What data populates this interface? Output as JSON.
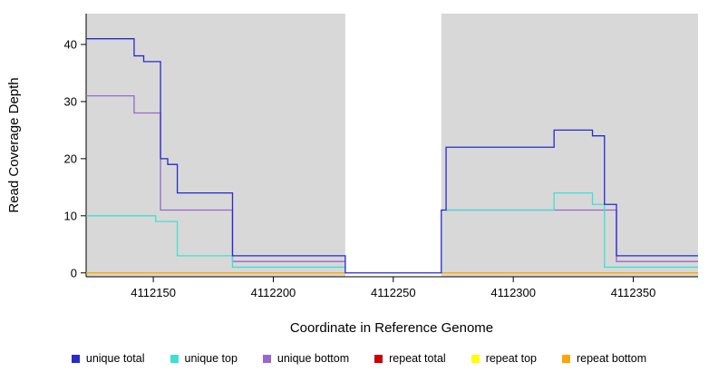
{
  "chart_data": {
    "type": "line",
    "subtype": "step",
    "title": "",
    "xlabel": "Coordinate in Reference Genome",
    "ylabel": "Read Coverage Depth",
    "xlim": [
      4112122,
      4112377
    ],
    "ylim": [
      0,
      45
    ],
    "xticks": [
      4112150,
      4112200,
      4112250,
      4112300,
      4112350
    ],
    "yticks": [
      0,
      10,
      20,
      30,
      40
    ],
    "grid": false,
    "legend_position": "bottom",
    "plot_background": "#d8d8d8",
    "masked_region": {
      "x0": 4112230,
      "x1": 4112270,
      "color": "#ffffff"
    },
    "draw_order": [
      3,
      4,
      5,
      2,
      1,
      0
    ],
    "series": [
      {
        "name": "unique total",
        "color": "#2929CC",
        "steps": [
          [
            4112122,
            41
          ],
          [
            4112142,
            38
          ],
          [
            4112146,
            37
          ],
          [
            4112153,
            20
          ],
          [
            4112156,
            19
          ],
          [
            4112160,
            14
          ],
          [
            4112183,
            3
          ],
          [
            4112230,
            0
          ],
          [
            4112270,
            11
          ],
          [
            4112272,
            22
          ],
          [
            4112317,
            25
          ],
          [
            4112333,
            24
          ],
          [
            4112338,
            12
          ],
          [
            4112343,
            3
          ],
          [
            4112377,
            3
          ]
        ]
      },
      {
        "name": "unique top",
        "color": "#40E0D0",
        "steps": [
          [
            4112122,
            10
          ],
          [
            4112151,
            9
          ],
          [
            4112160,
            3
          ],
          [
            4112183,
            1
          ],
          [
            4112230,
            null
          ],
          [
            4112270,
            11
          ],
          [
            4112317,
            14
          ],
          [
            4112333,
            12
          ],
          [
            4112338,
            1
          ],
          [
            4112377,
            1
          ]
        ]
      },
      {
        "name": "unique bottom",
        "color": "#9966CC",
        "steps": [
          [
            4112122,
            31
          ],
          [
            4112142,
            28
          ],
          [
            4112153,
            11
          ],
          [
            4112183,
            2
          ],
          [
            4112230,
            null
          ],
          [
            4112272,
            11
          ],
          [
            4112343,
            2
          ],
          [
            4112377,
            2
          ]
        ]
      },
      {
        "name": "repeat total",
        "color": "#CC0000",
        "steps": [
          [
            4112122,
            0
          ],
          [
            4112230,
            null
          ],
          [
            4112270,
            0
          ],
          [
            4112377,
            0
          ]
        ]
      },
      {
        "name": "repeat top",
        "color": "#FFFF00",
        "steps": [
          [
            4112122,
            0
          ],
          [
            4112230,
            null
          ],
          [
            4112270,
            0
          ],
          [
            4112377,
            0
          ]
        ]
      },
      {
        "name": "repeat bottom",
        "color": "#FFA500",
        "steps": [
          [
            4112122,
            0
          ],
          [
            4112230,
            null
          ],
          [
            4112270,
            0
          ],
          [
            4112377,
            0
          ]
        ]
      }
    ]
  }
}
